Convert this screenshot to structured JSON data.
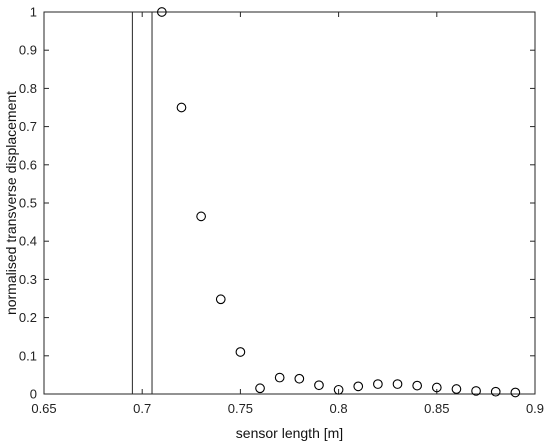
{
  "chart_data": {
    "type": "scatter",
    "title": "",
    "xlabel": "sensor length [m]",
    "ylabel": "normalised transverse displacement",
    "xlim": [
      0.65,
      0.9
    ],
    "ylim": [
      0,
      1
    ],
    "xticks": [
      "0.65",
      "0.7",
      "0.75",
      "0.8",
      "0.85",
      "0.9"
    ],
    "yticks": [
      "0",
      "0.1",
      "0.2",
      "0.3",
      "0.4",
      "0.5",
      "0.6",
      "0.7",
      "0.8",
      "0.9",
      "1"
    ],
    "grid": false,
    "vertical_lines_x": [
      0.695,
      0.705
    ],
    "marker": "open-circle",
    "x": [
      0.71,
      0.72,
      0.73,
      0.74,
      0.75,
      0.76,
      0.77,
      0.78,
      0.79,
      0.8,
      0.81,
      0.82,
      0.83,
      0.84,
      0.85,
      0.86,
      0.87,
      0.88,
      0.89
    ],
    "y": [
      1.0,
      0.75,
      0.465,
      0.248,
      0.11,
      0.015,
      0.043,
      0.04,
      0.023,
      0.011,
      0.02,
      0.026,
      0.026,
      0.022,
      0.017,
      0.013,
      0.008,
      0.006,
      0.004
    ]
  }
}
